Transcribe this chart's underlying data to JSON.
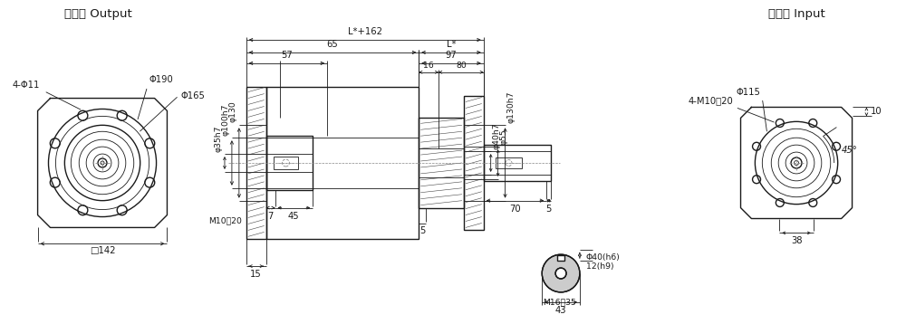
{
  "bg_color": "#ffffff",
  "lc": "#1a1a1a",
  "output_label": "输出端 Output",
  "input_label": "输入端 Input",
  "dims": {
    "L_plus_162": "L*+162",
    "L_star": "L*",
    "d65": "65",
    "d57": "57",
    "d97": "97",
    "d16": "16",
    "d80": "80",
    "d7": "7",
    "d45": "45",
    "d70": "70",
    "d5a": "5",
    "d5b": "5",
    "d15": "15",
    "d130": "φ130",
    "d100h7": "φ100h7",
    "d35h7": "φ35h7",
    "d40h7": "φ40h7",
    "d55": "φ55",
    "d130h7": "φ130h7",
    "d190": "Φ190",
    "d165": "Φ165",
    "d115": "Φ115",
    "d142": "□142",
    "d4phi11": "4-Φ11",
    "d4M10": "4-M10淲20",
    "dM10_20": "M10淲20",
    "d40h6": "Φ40(h6)",
    "d12h9": "12(h9)",
    "dM16_35": "M16淲35",
    "d43": "43",
    "d38": "38",
    "d10": "10",
    "d45deg": "45°"
  }
}
